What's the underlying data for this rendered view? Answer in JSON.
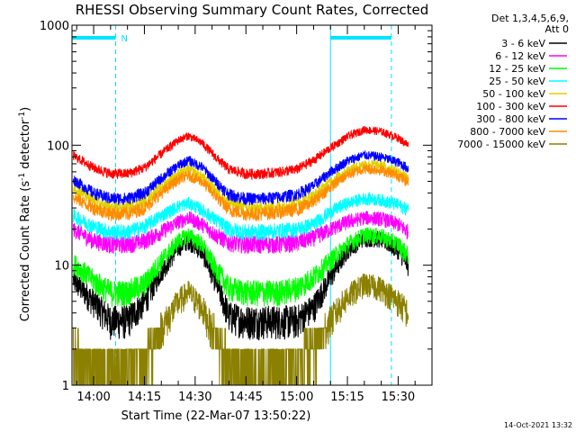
{
  "chart_data": {
    "type": "line",
    "title": "RHESSI Observing Summary Count Rates, Corrected",
    "xlabel": "Start Time (22-Mar-07 13:50:22)",
    "ylabel": "Corrected Count Rate (s",
    "ylabel_sup1": "-1",
    "ylabel_mid": " detector",
    "ylabel_sup2": "-1",
    "ylabel_end": ")",
    "y_scale": "log",
    "ylim": [
      1,
      1000
    ],
    "xlim_minutes": [
      -6.4,
      100
    ],
    "x_ticks": [
      {
        "label": "14:00",
        "minute": 0
      },
      {
        "label": "14:15",
        "minute": 15
      },
      {
        "label": "14:30",
        "minute": 30
      },
      {
        "label": "14:45",
        "minute": 45
      },
      {
        "label": "15:00",
        "minute": 60
      },
      {
        "label": "15:15",
        "minute": 75
      },
      {
        "label": "15:30",
        "minute": 90
      }
    ],
    "y_ticks": [
      {
        "label": "1",
        "value": 1
      },
      {
        "label": "10",
        "value": 10
      },
      {
        "label": "100",
        "value": 100
      },
      {
        "label": "1000",
        "value": 1000
      }
    ],
    "legend_header": [
      "Det 1,3,4,5,6,9,",
      "Att 0"
    ],
    "series": [
      {
        "name": "3 - 6 keV",
        "color": "#000000",
        "x": [
          -6,
          0,
          5,
          10,
          15,
          20,
          25,
          28,
          32,
          36,
          40,
          45,
          50,
          55,
          60,
          65,
          70,
          75,
          80,
          85,
          90,
          93
        ],
        "y": [
          7.5,
          5.0,
          3.5,
          3.5,
          5.0,
          9.0,
          14.0,
          16.0,
          13.0,
          7.5,
          3.8,
          3.5,
          3.5,
          3.5,
          3.5,
          4.5,
          8.0,
          13.5,
          17.0,
          16.5,
          13.5,
          10.0
        ]
      },
      {
        "name": "6 - 12 keV",
        "color": "#ff00ff",
        "x": [
          -6,
          0,
          5,
          10,
          15,
          20,
          25,
          28,
          32,
          36,
          40,
          45,
          50,
          55,
          60,
          65,
          70,
          75,
          80,
          85,
          90,
          93
        ],
        "y": [
          20.0,
          16.0,
          15.0,
          15.0,
          16.0,
          19.0,
          23.0,
          25.0,
          22.0,
          18.0,
          15.5,
          15.0,
          15.0,
          15.0,
          15.5,
          17.0,
          20.0,
          23.0,
          25.0,
          24.5,
          22.0,
          19.0
        ]
      },
      {
        "name": "12 - 25 keV",
        "color": "#00ff00",
        "x": [
          -6,
          0,
          5,
          10,
          15,
          20,
          25,
          28,
          32,
          36,
          40,
          45,
          50,
          55,
          60,
          65,
          70,
          75,
          80,
          85,
          90,
          93
        ],
        "y": [
          10.5,
          7.5,
          6.0,
          6.0,
          7.0,
          11.0,
          16.0,
          18.0,
          15.0,
          9.5,
          6.5,
          6.0,
          6.0,
          6.0,
          6.5,
          8.0,
          11.0,
          15.0,
          18.0,
          17.5,
          15.0,
          12.0
        ]
      },
      {
        "name": "25 - 50 keV",
        "color": "#00ffff",
        "x": [
          -6,
          0,
          5,
          10,
          15,
          20,
          25,
          28,
          32,
          36,
          40,
          45,
          50,
          55,
          60,
          65,
          70,
          75,
          80,
          85,
          90,
          93
        ],
        "y": [
          26.0,
          21.0,
          19.0,
          19.0,
          21.0,
          26.0,
          31.0,
          33.0,
          29.0,
          24.0,
          20.0,
          19.0,
          19.0,
          19.5,
          20.0,
          22.0,
          28.0,
          33.0,
          36.0,
          35.0,
          32.0,
          29.0
        ]
      },
      {
        "name": "50 - 100 keV",
        "color": "#e0d000",
        "x": [
          -6,
          0,
          5,
          10,
          15,
          20,
          25,
          28,
          32,
          36,
          40,
          45,
          50,
          55,
          60,
          65,
          70,
          75,
          80,
          85,
          90,
          93
        ],
        "y": [
          45.0,
          34.0,
          30.0,
          30.0,
          34.0,
          45.0,
          58.0,
          63.0,
          55.0,
          42.0,
          33.0,
          30.0,
          30.0,
          31.0,
          33.0,
          38.0,
          50.0,
          62.0,
          70.0,
          68.0,
          60.0,
          52.0
        ]
      },
      {
        "name": "100 - 300 keV",
        "color": "#ff0000",
        "x": [
          -6,
          0,
          5,
          10,
          15,
          20,
          25,
          28,
          32,
          36,
          40,
          45,
          50,
          55,
          60,
          65,
          70,
          75,
          80,
          85,
          90,
          93
        ],
        "y": [
          82.0,
          65.0,
          58.0,
          58.0,
          65.0,
          85.0,
          110.0,
          120.0,
          105.0,
          80.0,
          63.0,
          58.0,
          58.0,
          60.0,
          63.0,
          75.0,
          95.0,
          118.0,
          135.0,
          130.0,
          115.0,
          100.0
        ]
      },
      {
        "name": "300 - 800 keV",
        "color": "#0000ff",
        "x": [
          -6,
          0,
          5,
          10,
          15,
          20,
          25,
          28,
          32,
          36,
          40,
          45,
          50,
          55,
          60,
          65,
          70,
          75,
          80,
          85,
          90,
          93
        ],
        "y": [
          52.0,
          40.0,
          36.0,
          36.0,
          40.0,
          53.0,
          68.0,
          75.0,
          66.0,
          50.0,
          39.0,
          36.0,
          36.0,
          37.0,
          39.0,
          46.0,
          60.0,
          74.0,
          83.0,
          80.0,
          72.0,
          64.0
        ]
      },
      {
        "name": "800 - 7000 keV",
        "color": "#ff8c00",
        "x": [
          -6,
          0,
          5,
          10,
          15,
          20,
          25,
          28,
          32,
          36,
          40,
          45,
          50,
          55,
          60,
          65,
          70,
          75,
          80,
          85,
          90,
          93
        ],
        "y": [
          37.0,
          30.0,
          27.0,
          27.0,
          30.0,
          40.0,
          52.0,
          56.0,
          50.0,
          38.0,
          29.0,
          27.0,
          27.0,
          28.0,
          29.0,
          34.0,
          45.0,
          57.0,
          64.0,
          62.0,
          56.0,
          49.0
        ]
      },
      {
        "name": "7000 - 15000 keV",
        "color": "#8b8000",
        "x": [
          -6,
          0,
          5,
          10,
          15,
          20,
          25,
          28,
          32,
          36,
          40,
          45,
          50,
          55,
          60,
          65,
          70,
          75,
          80,
          85,
          90,
          93
        ],
        "y": [
          2.0,
          1.5,
          1.4,
          1.5,
          1.8,
          3.0,
          5.0,
          6.0,
          4.5,
          2.5,
          1.6,
          1.4,
          1.4,
          1.5,
          1.6,
          2.0,
          3.5,
          5.5,
          7.0,
          6.5,
          5.0,
          4.0
        ]
      }
    ],
    "status_marks": [
      {
        "label": "N",
        "start_minute": -6.4,
        "end_minute": 6.5
      },
      {
        "label": "",
        "start_minute": 70,
        "end_minute": 88
      }
    ],
    "intervals": [
      {
        "start_minute": -6.4,
        "end_minute": 6.5
      },
      {
        "start_minute": 70,
        "end_minute": 88
      }
    ],
    "interval_color": "#00e5ff",
    "timestamp": "14-Oct-2021 13:32",
    "legend_placement": "right",
    "grid": false
  }
}
